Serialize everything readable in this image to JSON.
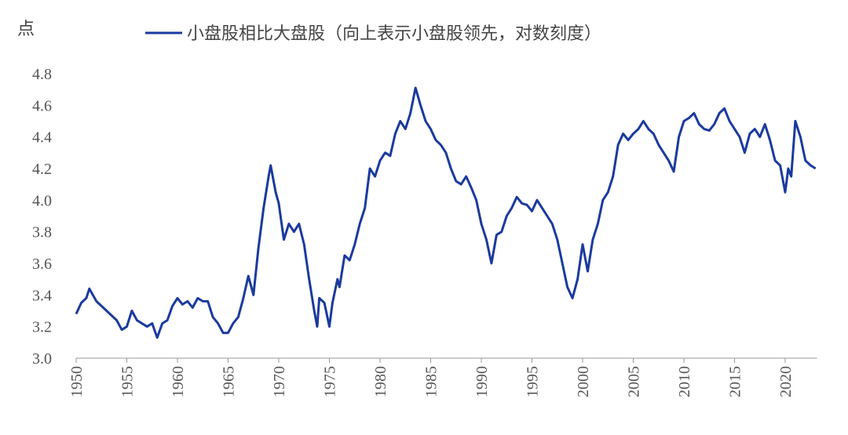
{
  "chart_data": {
    "type": "line",
    "ylabel": "点",
    "xlim": [
      1950,
      2023
    ],
    "ylim": [
      3.0,
      4.8
    ],
    "xticks": [
      1950,
      1955,
      1960,
      1965,
      1970,
      1975,
      1980,
      1985,
      1990,
      1995,
      2000,
      2005,
      2010,
      2015,
      2020
    ],
    "yticks": [
      {
        "value": 3,
        "label": "3.0"
      },
      3.2,
      3.4,
      3.6,
      3.8,
      {
        "value": 4,
        "label": "4.0"
      },
      4.2,
      4.4,
      4.6,
      4.8
    ],
    "legend": "top",
    "x": [
      1950,
      1950.5,
      1951,
      1951.3,
      1952,
      1953,
      1953.5,
      1954,
      1954.5,
      1955,
      1955.5,
      1956,
      1957,
      1957.5,
      1958,
      1958.5,
      1959,
      1959.5,
      1960,
      1960.5,
      1961,
      1961.5,
      1962,
      1962.5,
      1963,
      1963.5,
      1964,
      1964.5,
      1965,
      1965.5,
      1966,
      1966.5,
      1967,
      1967.5,
      1968,
      1968.5,
      1969,
      1969.2,
      1969.7,
      1970,
      1970.5,
      1971,
      1971.5,
      1972,
      1972.5,
      1973,
      1973.5,
      1973.8,
      1974,
      1974.5,
      1975,
      1975.3,
      1975.8,
      1976,
      1976.5,
      1977,
      1977.5,
      1978,
      1978.5,
      1979,
      1979.5,
      1980,
      1980.5,
      1981,
      1981.5,
      1982,
      1982.5,
      1983,
      1983.5,
      1984,
      1984.5,
      1985,
      1985.5,
      1986,
      1986.5,
      1987,
      1987.5,
      1988,
      1988.5,
      1989,
      1989.5,
      1990,
      1990.5,
      1991,
      1991.5,
      1992,
      1992.5,
      1993,
      1993.5,
      1994,
      1994.5,
      1995,
      1995.5,
      1996,
      1996.5,
      1997,
      1997.5,
      1998,
      1998.5,
      1999,
      1999.5,
      2000,
      2000.5,
      2001,
      2001.5,
      2002,
      2002.5,
      2003,
      2003.5,
      2004,
      2004.5,
      2005,
      2005.5,
      2006,
      2006.5,
      2007,
      2007.5,
      2008,
      2008.5,
      2009,
      2009.5,
      2010,
      2010.5,
      2011,
      2011.5,
      2012,
      2012.5,
      2013,
      2013.5,
      2014,
      2014.5,
      2015,
      2015.5,
      2016,
      2016.5,
      2017,
      2017.5,
      2018,
      2018.5,
      2019,
      2019.5,
      2020,
      2020.3,
      2020.6,
      2021,
      2021.5,
      2022,
      2022.5,
      2023
    ],
    "series": [
      {
        "name": "小盘股相比大盘股（向上表示小盘股领先，对数刻度）",
        "color": "#1b3a9e",
        "values": [
          3.28,
          3.35,
          3.38,
          3.44,
          3.36,
          3.3,
          3.27,
          3.24,
          3.18,
          3.2,
          3.3,
          3.24,
          3.2,
          3.22,
          3.13,
          3.22,
          3.24,
          3.33,
          3.38,
          3.34,
          3.36,
          3.32,
          3.38,
          3.36,
          3.36,
          3.26,
          3.22,
          3.16,
          3.16,
          3.22,
          3.26,
          3.38,
          3.52,
          3.4,
          3.7,
          3.95,
          4.15,
          4.22,
          4.05,
          3.98,
          3.75,
          3.85,
          3.8,
          3.85,
          3.72,
          3.5,
          3.3,
          3.2,
          3.38,
          3.35,
          3.2,
          3.35,
          3.5,
          3.45,
          3.65,
          3.62,
          3.72,
          3.85,
          3.95,
          4.2,
          4.15,
          4.25,
          4.3,
          4.28,
          4.42,
          4.5,
          4.45,
          4.55,
          4.71,
          4.6,
          4.5,
          4.45,
          4.38,
          4.35,
          4.3,
          4.2,
          4.12,
          4.1,
          4.15,
          4.08,
          4.0,
          3.85,
          3.75,
          3.6,
          3.78,
          3.8,
          3.9,
          3.95,
          4.02,
          3.98,
          3.97,
          3.93,
          4.0,
          3.95,
          3.9,
          3.85,
          3.75,
          3.6,
          3.45,
          3.38,
          3.5,
          3.72,
          3.55,
          3.75,
          3.85,
          4.0,
          4.05,
          4.15,
          4.35,
          4.42,
          4.38,
          4.42,
          4.45,
          4.5,
          4.45,
          4.42,
          4.35,
          4.3,
          4.25,
          4.18,
          4.4,
          4.5,
          4.52,
          4.55,
          4.48,
          4.45,
          4.44,
          4.48,
          4.55,
          4.58,
          4.5,
          4.45,
          4.4,
          4.3,
          4.42,
          4.45,
          4.4,
          4.48,
          4.38,
          4.25,
          4.22,
          4.05,
          4.2,
          4.15,
          4.5,
          4.4,
          4.25,
          4.22,
          4.2
        ]
      }
    ]
  }
}
